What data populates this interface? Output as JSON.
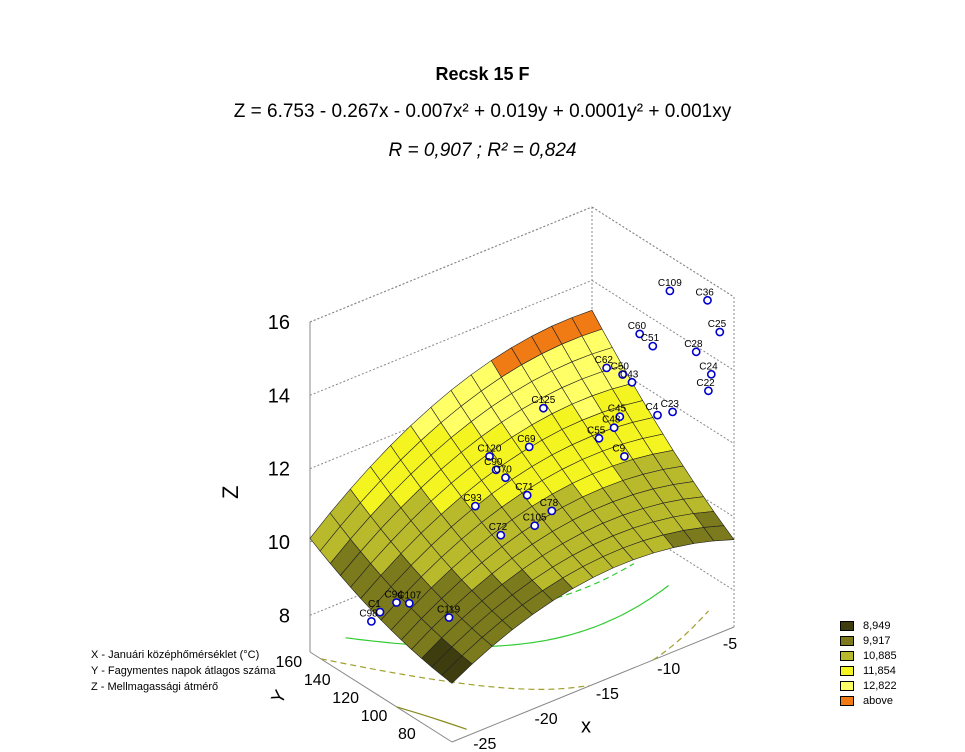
{
  "chart_data": {
    "type": "surface3d",
    "title": "Recsk 15 F",
    "equation": "Z = 6.753 - 0.267x - 0.007x² + 0.019y + 0.0001y² + 0.001xy",
    "stats": "R = 0,907 ; R² = 0,824",
    "xlabel": "x",
    "ylabel": "Y",
    "zlabel": "Z",
    "x_ticks": [
      -25,
      -20,
      -15,
      -10,
      -5
    ],
    "y_ticks": [
      80,
      100,
      120,
      140,
      160
    ],
    "z_ticks": [
      8,
      10,
      12,
      14,
      16
    ],
    "xlim": [
      -28,
      -5
    ],
    "ylim": [
      70,
      170
    ],
    "zlim": [
      7,
      16
    ],
    "grid": true,
    "legend_position": "bottom-right",
    "coefficients": {
      "b0": 6.753,
      "bx": -0.267,
      "bxx": -0.007,
      "by": 0.019,
      "byy": 0.0001,
      "bxy": 0.001
    },
    "legend": [
      {
        "label": "8,949",
        "color": "#3d3d10"
      },
      {
        "label": "9,917",
        "color": "#7b7a1c"
      },
      {
        "label": "10,885",
        "color": "#b9b92c"
      },
      {
        "label": "11,854",
        "color": "#f4f420"
      },
      {
        "label": "12,822",
        "color": "#ffff66"
      },
      {
        "label": "above",
        "color": "#f07a14"
      }
    ],
    "points": [
      {
        "label": "C119",
        "x": -25,
        "y": 98,
        "z": 9.3
      },
      {
        "label": "C107",
        "x": -25,
        "y": 126,
        "z": 9.0
      },
      {
        "label": "C94",
        "x": -25,
        "y": 135,
        "z": 8.8
      },
      {
        "label": "C1",
        "x": -26,
        "y": 138,
        "z": 8.6
      },
      {
        "label": "C98",
        "x": -26,
        "y": 144,
        "z": 8.2
      },
      {
        "label": "C105",
        "x": -15,
        "y": 124,
        "z": 9.8
      },
      {
        "label": "C72",
        "x": -18,
        "y": 122,
        "z": 10.0
      },
      {
        "label": "C78",
        "x": -15,
        "y": 112,
        "z": 10.5
      },
      {
        "label": "C9",
        "x": -10,
        "y": 104,
        "z": 11.5
      },
      {
        "label": "C23",
        "x": -7,
        "y": 96,
        "z": 12.5
      },
      {
        "label": "C4",
        "x": -8,
        "y": 98,
        "z": 12.5
      },
      {
        "label": "C22",
        "x": -5,
        "y": 88,
        "z": 13.0
      },
      {
        "label": "C24",
        "x": -5,
        "y": 86,
        "z": 13.5
      },
      {
        "label": "C28",
        "x": -6,
        "y": 88,
        "z": 14.2
      },
      {
        "label": "C25",
        "x": -5,
        "y": 80,
        "z": 14.8
      },
      {
        "label": "C36",
        "x": -6,
        "y": 80,
        "z": 15.8
      },
      {
        "label": "C109",
        "x": -10,
        "y": 72,
        "z": 16.8
      },
      {
        "label": "C60",
        "x": -12,
        "y": 76,
        "z": 15.8
      },
      {
        "label": "C62",
        "x": -14,
        "y": 82,
        "z": 15.0
      },
      {
        "label": "C125",
        "x": -18,
        "y": 92,
        "z": 14.2
      },
      {
        "label": "C120",
        "x": -21,
        "y": 104,
        "z": 13.0
      },
      {
        "label": "C69",
        "x": -18,
        "y": 102,
        "z": 12.9
      },
      {
        "label": "C90",
        "x": -20,
        "y": 108,
        "z": 12.4
      },
      {
        "label": "C70",
        "x": -19,
        "y": 110,
        "z": 12.0
      },
      {
        "label": "C93",
        "x": -21,
        "y": 114,
        "z": 11.4
      },
      {
        "label": "C71",
        "x": -17,
        "y": 112,
        "z": 11.2
      },
      {
        "label": "C51",
        "x": -10,
        "y": 84,
        "z": 15.0
      },
      {
        "label": "C50",
        "x": -12,
        "y": 88,
        "z": 14.4
      },
      {
        "label": "C43",
        "x": -11,
        "y": 90,
        "z": 14.0
      },
      {
        "label": "C45",
        "x": -12,
        "y": 90,
        "z": 13.2
      },
      {
        "label": "C48",
        "x": -12,
        "y": 94,
        "z": 12.8
      },
      {
        "label": "C55",
        "x": -13,
        "y": 96,
        "z": 12.6
      }
    ]
  },
  "notes": [
    "X - Januári középhőmérséklet (°C)",
    "Y - Fagymentes napok átlagos száma",
    "Z - Mellmagassági átmérő"
  ]
}
